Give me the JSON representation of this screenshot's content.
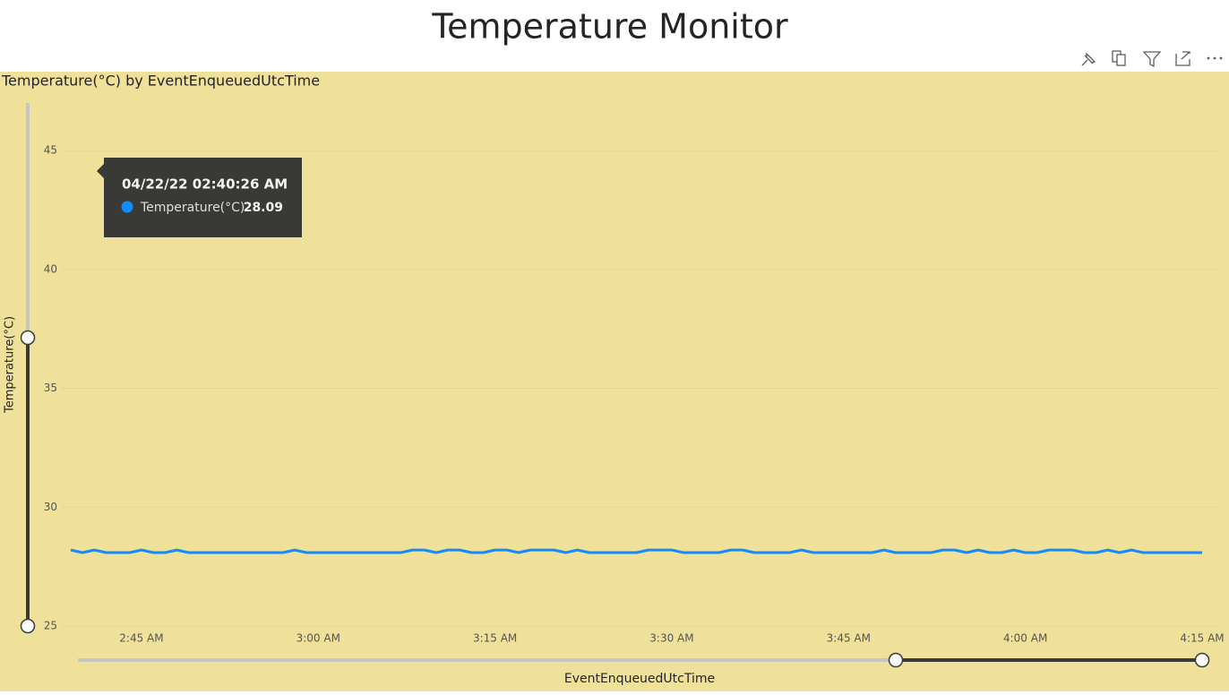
{
  "page_title": "Temperature Monitor",
  "chart_data": {
    "type": "line",
    "title": "Temperature(°C) by EventEnqueuedUtcTime",
    "y_label": "Temperature(°C)",
    "x_label": "EventEnqueuedUtcTime",
    "x": [
      "02:39",
      "02:40",
      "02:41",
      "02:42",
      "02:43",
      "02:44",
      "02:45",
      "02:46",
      "02:47",
      "02:48",
      "02:49",
      "02:50",
      "02:51",
      "02:52",
      "02:53",
      "02:54",
      "02:55",
      "02:56",
      "02:57",
      "02:58",
      "02:59",
      "03:00",
      "03:01",
      "03:02",
      "03:03",
      "03:04",
      "03:05",
      "03:06",
      "03:07",
      "03:08",
      "03:09",
      "03:10",
      "03:11",
      "03:12",
      "03:13",
      "03:14",
      "03:15",
      "03:16",
      "03:17",
      "03:18",
      "03:19",
      "03:20",
      "03:21",
      "03:22",
      "03:23",
      "03:24",
      "03:25",
      "03:26",
      "03:27",
      "03:28",
      "03:29",
      "03:30",
      "03:31",
      "03:32",
      "03:33",
      "03:34",
      "03:35",
      "03:36",
      "03:37",
      "03:38",
      "03:39",
      "03:40",
      "03:41",
      "03:42",
      "03:43",
      "03:44",
      "03:45",
      "03:46",
      "03:47",
      "03:48",
      "03:49",
      "03:50",
      "03:51",
      "03:52",
      "03:53",
      "03:54",
      "03:55",
      "03:56",
      "03:57",
      "03:58",
      "03:59",
      "04:00",
      "04:01",
      "04:02",
      "04:03",
      "04:04",
      "04:05",
      "04:06",
      "04:07",
      "04:08",
      "04:09",
      "04:10",
      "04:11",
      "04:12",
      "04:13",
      "04:14",
      "04:15"
    ],
    "values": [
      28.2,
      28.09,
      28.2,
      28.09,
      28.09,
      28.09,
      28.2,
      28.09,
      28.09,
      28.2,
      28.09,
      28.09,
      28.09,
      28.09,
      28.09,
      28.09,
      28.09,
      28.09,
      28.09,
      28.2,
      28.09,
      28.09,
      28.09,
      28.09,
      28.09,
      28.09,
      28.09,
      28.09,
      28.09,
      28.2,
      28.2,
      28.09,
      28.2,
      28.2,
      28.09,
      28.09,
      28.2,
      28.2,
      28.09,
      28.2,
      28.2,
      28.2,
      28.09,
      28.2,
      28.09,
      28.09,
      28.09,
      28.09,
      28.09,
      28.2,
      28.2,
      28.2,
      28.09,
      28.09,
      28.09,
      28.09,
      28.2,
      28.2,
      28.09,
      28.09,
      28.09,
      28.09,
      28.2,
      28.09,
      28.09,
      28.09,
      28.09,
      28.09,
      28.09,
      28.2,
      28.09,
      28.09,
      28.09,
      28.09,
      28.2,
      28.2,
      28.09,
      28.2,
      28.09,
      28.09,
      28.2,
      28.09,
      28.09,
      28.2,
      28.2,
      28.2,
      28.09,
      28.09,
      28.2,
      28.09,
      28.2,
      28.09,
      28.09,
      28.09,
      28.09,
      28.09,
      28.09
    ],
    "color": "#118dff",
    "xlim": [
      "02:39",
      "04:15"
    ],
    "xticks": [
      {
        "value": "02:45",
        "label": "2:45 AM"
      },
      {
        "value": "03:00",
        "label": "3:00 AM"
      },
      {
        "value": "03:15",
        "label": "3:15 AM"
      },
      {
        "value": "03:30",
        "label": "3:30 AM"
      },
      {
        "value": "03:45",
        "label": "3:45 AM"
      },
      {
        "value": "04:00",
        "label": "4:00 AM"
      },
      {
        "value": "04:15",
        "label": "4:15 AM"
      }
    ],
    "ylim": [
      25,
      47
    ],
    "yticks": [
      25,
      30,
      35,
      40,
      45
    ],
    "grid": true
  },
  "tooltip": {
    "title": "04/22/22 02:40:26 AM",
    "label": "Temperature(°C)",
    "value": 28.09
  }
}
